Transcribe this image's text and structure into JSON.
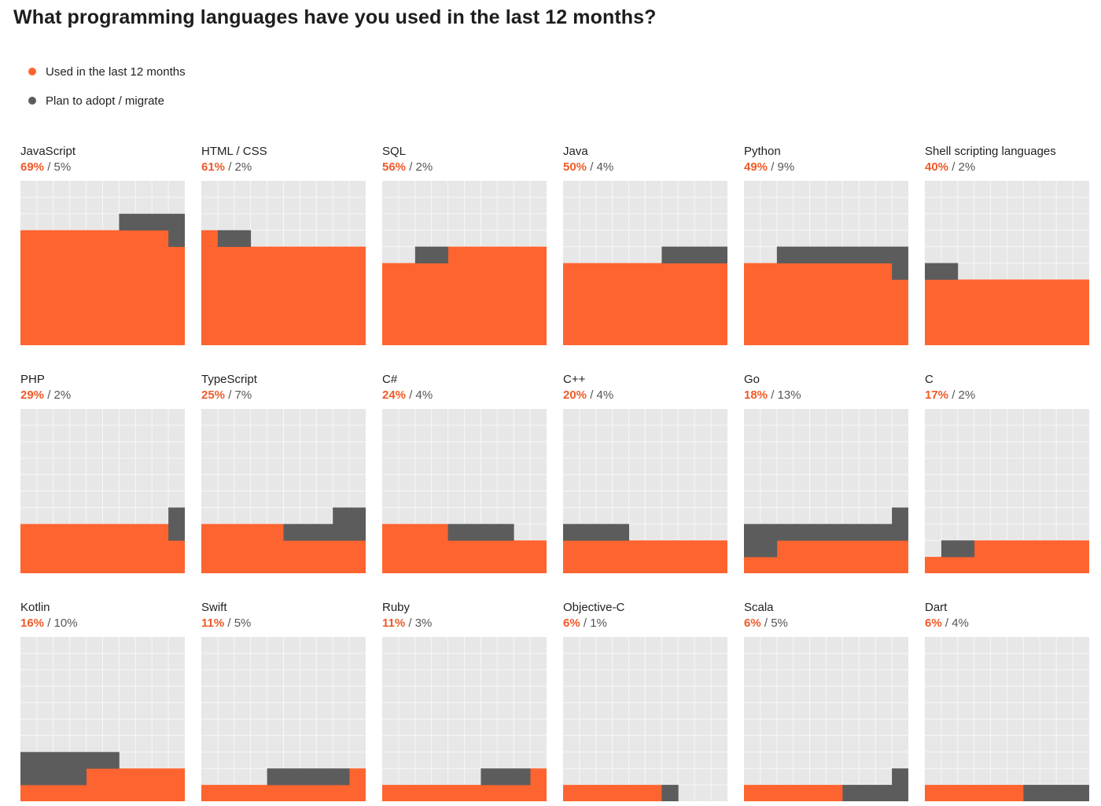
{
  "page": {
    "title": "What programming languages have you used in the last 12 months?"
  },
  "colors": {
    "used": "#fe6430",
    "plan": "#5c5c5c",
    "grid_bg": "#e7e7e7",
    "grid_line": "#f7f7f7",
    "value_used_text": "#f05a28"
  },
  "legend": {
    "used_label": "Used in the last 12 months",
    "plan_label": "Plan to adopt / migrate"
  },
  "chart_data": {
    "type": "waffle",
    "title": "What programming languages have you used in the last 12 months?",
    "grid": "10x10",
    "series_names": [
      "Used in the last 12 months",
      "Plan to adopt / migrate"
    ],
    "items": [
      {
        "name": "JavaScript",
        "used": 69,
        "plan": 5,
        "used_text": "69%",
        "plan_text": " / 5%"
      },
      {
        "name": "HTML / CSS",
        "used": 61,
        "plan": 2,
        "used_text": "61%",
        "plan_text": " / 2%"
      },
      {
        "name": "SQL",
        "used": 56,
        "plan": 2,
        "used_text": "56%",
        "plan_text": " / 2%"
      },
      {
        "name": "Java",
        "used": 50,
        "plan": 4,
        "used_text": "50%",
        "plan_text": " / 4%"
      },
      {
        "name": "Python",
        "used": 49,
        "plan": 9,
        "used_text": "49%",
        "plan_text": " / 9%"
      },
      {
        "name": "Shell scripting languages",
        "used": 40,
        "plan": 2,
        "used_text": "40%",
        "plan_text": " / 2%"
      },
      {
        "name": "PHP",
        "used": 29,
        "plan": 2,
        "used_text": "29%",
        "plan_text": " / 2%"
      },
      {
        "name": "TypeScript",
        "used": 25,
        "plan": 7,
        "used_text": "25%",
        "plan_text": " / 7%"
      },
      {
        "name": "C#",
        "used": 24,
        "plan": 4,
        "used_text": "24%",
        "plan_text": " / 4%"
      },
      {
        "name": "C++",
        "used": 20,
        "plan": 4,
        "used_text": "20%",
        "plan_text": " / 4%"
      },
      {
        "name": "Go",
        "used": 18,
        "plan": 13,
        "used_text": "18%",
        "plan_text": " / 13%"
      },
      {
        "name": "C",
        "used": 17,
        "plan": 2,
        "used_text": "17%",
        "plan_text": " / 2%"
      },
      {
        "name": "Kotlin",
        "used": 16,
        "plan": 10,
        "used_text": "16%",
        "plan_text": " / 10%"
      },
      {
        "name": "Swift",
        "used": 11,
        "plan": 5,
        "used_text": "11%",
        "plan_text": " / 5%"
      },
      {
        "name": "Ruby",
        "used": 11,
        "plan": 3,
        "used_text": "11%",
        "plan_text": " / 3%"
      },
      {
        "name": "Objective-C",
        "used": 6,
        "plan": 1,
        "used_text": "6%",
        "plan_text": " / 1%"
      },
      {
        "name": "Scala",
        "used": 6,
        "plan": 5,
        "used_text": "6%",
        "plan_text": " / 5%"
      },
      {
        "name": "Dart",
        "used": 6,
        "plan": 4,
        "used_text": "6%",
        "plan_text": " / 4%"
      }
    ]
  }
}
